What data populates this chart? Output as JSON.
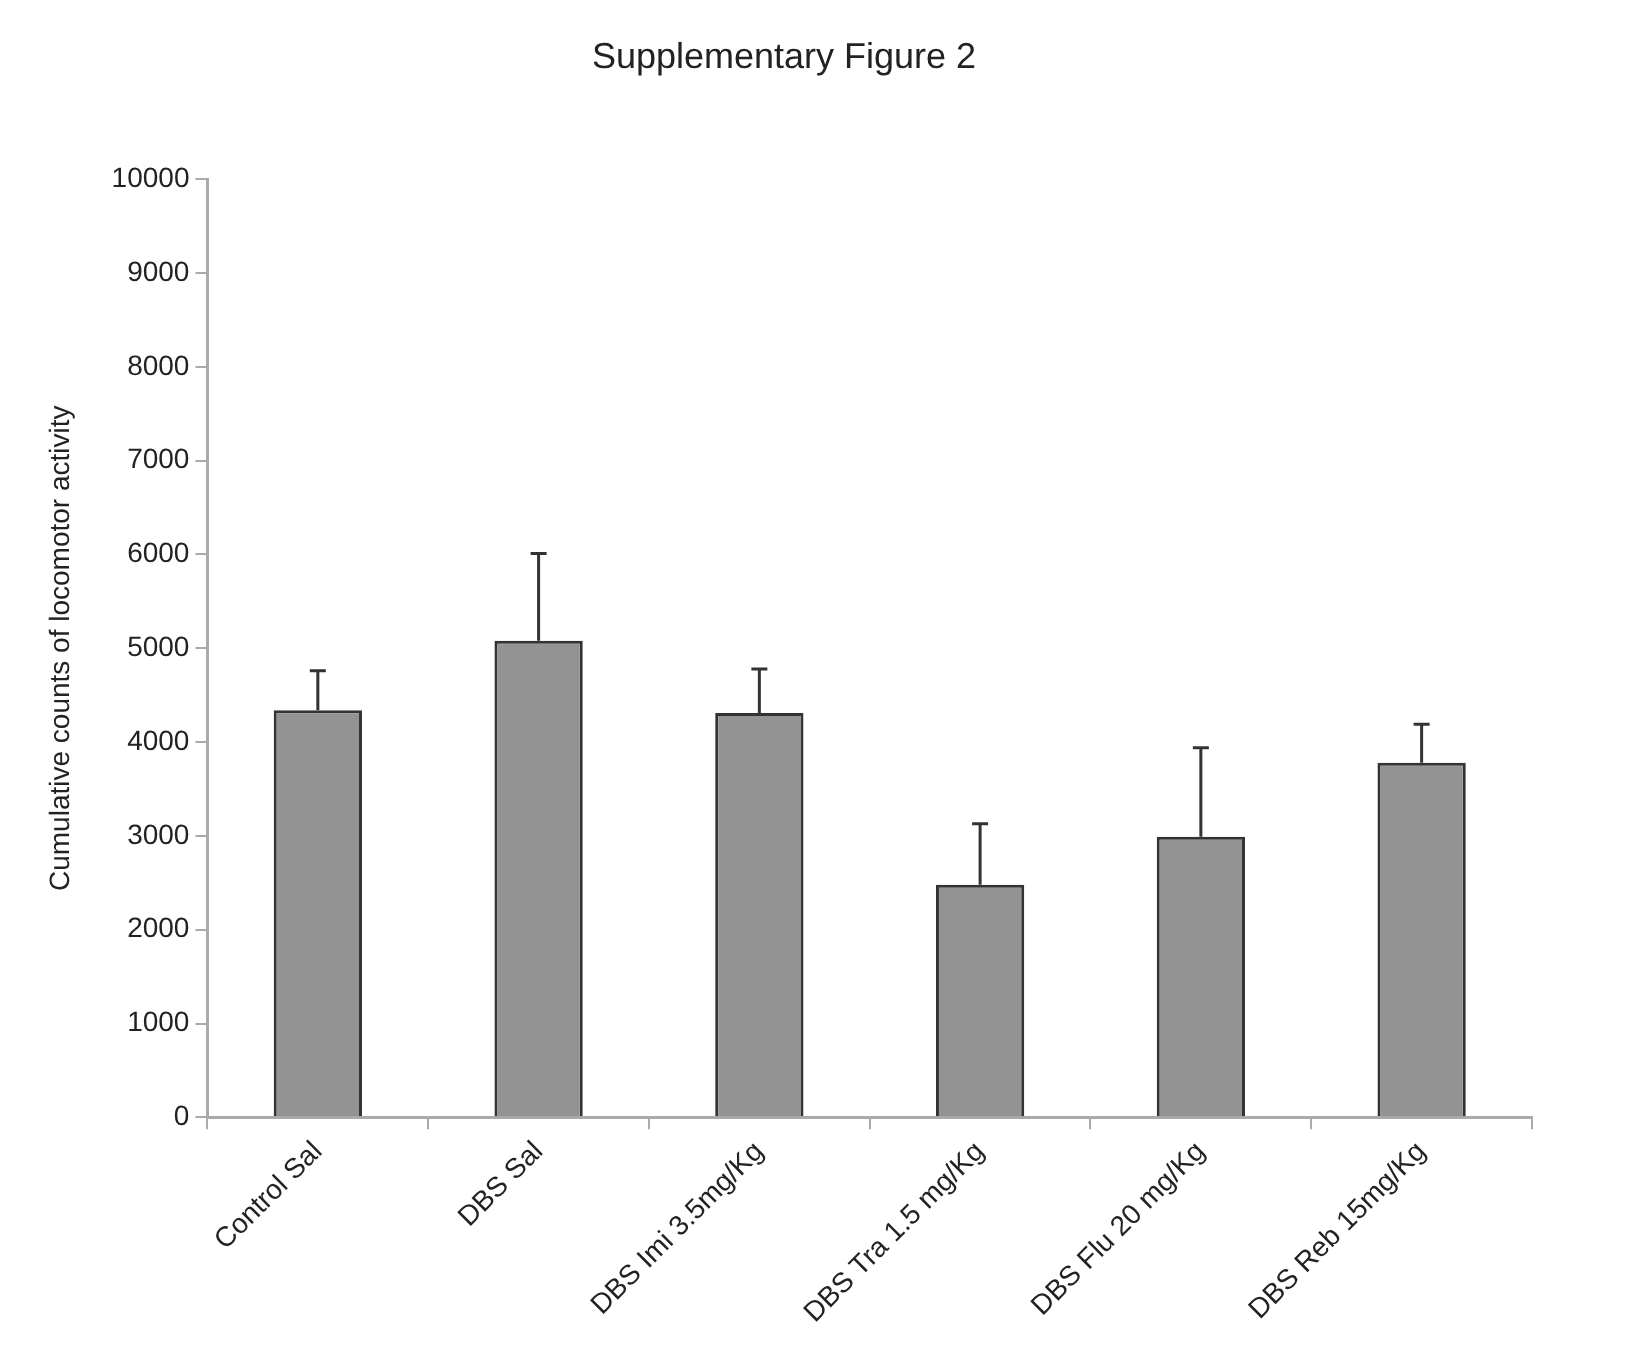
{
  "chart_data": {
    "type": "bar",
    "title": "Supplementary Figure 2",
    "ylabel": "Cumulative counts of locomotor activity",
    "categories": [
      "Control Sal",
      "DBS Sal",
      "DBS Imi 3.5mg/Kg",
      "DBS Tra 1.5 mg/Kg",
      "DBS Flu 20 mg/Kg",
      "DBS Reb 15mg/Kg"
    ],
    "values": [
      4340,
      5080,
      4310,
      2480,
      2990,
      3780
    ],
    "errors": [
      [
        4340,
        4760
      ],
      [
        5080,
        6010
      ],
      [
        4310,
        4780
      ],
      [
        2480,
        3130
      ],
      [
        2990,
        3940
      ],
      [
        3780,
        4190
      ]
    ],
    "color": "#939393",
    "ylim": [
      0,
      10000
    ],
    "yticks": [
      0,
      1000,
      2000,
      3000,
      4000,
      5000,
      6000,
      7000,
      8000,
      9000,
      10000
    ],
    "grid": false,
    "legend": false
  }
}
